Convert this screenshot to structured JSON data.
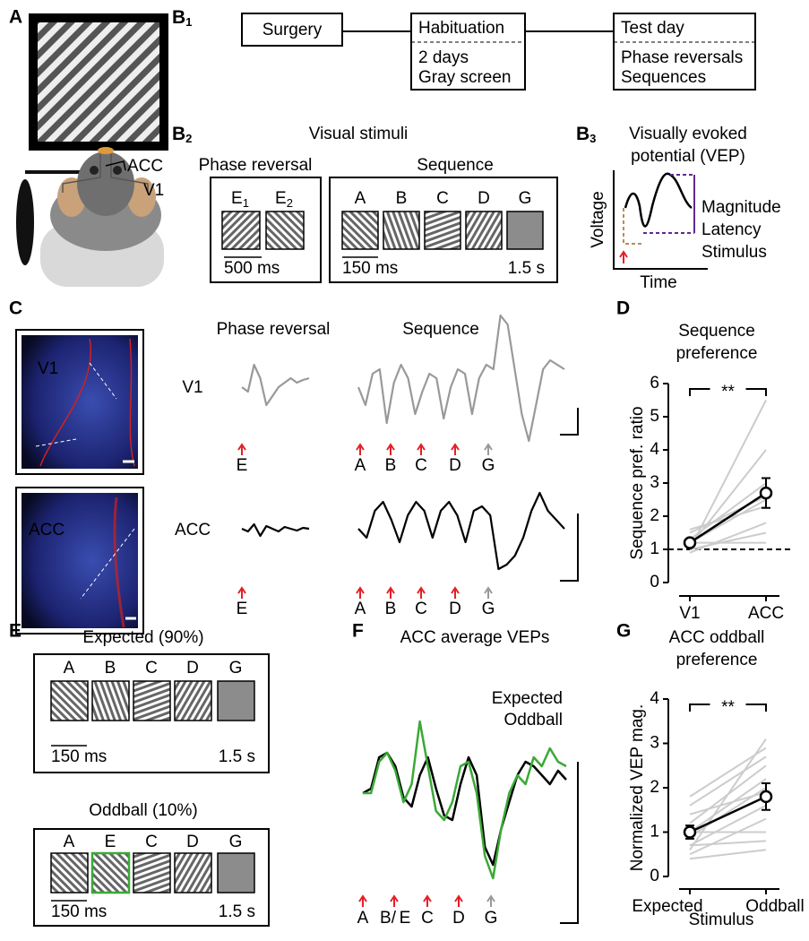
{
  "panel_a": {
    "label": "A",
    "electrodes": [
      "ACC",
      "V1"
    ]
  },
  "panel_b1": {
    "label": "B",
    "sub": "1",
    "steps": [
      {
        "title": "Surgery"
      },
      {
        "title": "Habituation",
        "details": [
          "2 days",
          "Gray screen"
        ]
      },
      {
        "title": "Test day",
        "details": [
          "Phase reversals",
          "Sequences"
        ]
      }
    ]
  },
  "panel_b2": {
    "label": "B",
    "sub": "2",
    "title": "Visual stimuli",
    "phase_reversal": {
      "title": "Phase reversal",
      "stimuli": [
        {
          "letter": "E",
          "sub": "1"
        },
        {
          "letter": "E",
          "sub": "2"
        }
      ],
      "duration": "500 ms"
    },
    "sequence": {
      "title": "Sequence",
      "stimuli": [
        "A",
        "B",
        "C",
        "D",
        "G"
      ],
      "duration": "150 ms",
      "gray_duration": "1.5 s"
    }
  },
  "panel_b3": {
    "label": "B",
    "sub": "3",
    "title": [
      "Visually evoked",
      "potential (VEP)"
    ],
    "y_label": "Voltage",
    "x_label": "Time",
    "legend": [
      {
        "text": "Magnitude",
        "color": "#5e2a91"
      },
      {
        "text": "Latency",
        "color": "#b98a5a"
      },
      {
        "text": "Stimulus",
        "color": "#e41f26"
      }
    ]
  },
  "panel_c": {
    "label": "C",
    "images": [
      "V1",
      "ACC"
    ],
    "column_titles": [
      "Phase reversal",
      "Sequence"
    ],
    "rows": [
      {
        "name": "V1",
        "color": "#999999",
        "phase_reversal": [
          0,
          -5,
          25,
          10,
          -20,
          -10,
          0,
          5,
          10,
          5,
          8,
          10
        ],
        "sequence": [
          0,
          -20,
          15,
          20,
          -40,
          5,
          25,
          10,
          -30,
          -5,
          15,
          10,
          -35,
          0,
          20,
          15,
          -30,
          10,
          25,
          20,
          80,
          70,
          20,
          -30,
          -60,
          -20,
          20,
          30,
          25,
          20
        ]
      },
      {
        "name": "ACC",
        "color": "#000000",
        "phase_reversal": [
          0,
          -3,
          5,
          -8,
          3,
          0,
          -3,
          2,
          0,
          -2,
          1,
          0
        ],
        "sequence": [
          0,
          -10,
          20,
          30,
          10,
          -15,
          15,
          30,
          20,
          -10,
          20,
          30,
          15,
          -15,
          20,
          25,
          15,
          -45,
          -40,
          -30,
          -10,
          20,
          40,
          20,
          10,
          0
        ]
      }
    ],
    "stimulus_labels": {
      "phase_reversal": [
        {
          "text": "E",
          "color": "#e41f26"
        }
      ],
      "sequence": [
        {
          "text": "A",
          "color": "#e41f26"
        },
        {
          "text": "B",
          "color": "#e41f26"
        },
        {
          "text": "C",
          "color": "#e41f26"
        },
        {
          "text": "D",
          "color": "#e41f26"
        },
        {
          "text": "G",
          "color": "#999999"
        }
      ]
    }
  },
  "panel_d": {
    "label": "D"
  },
  "panel_e": {
    "label": "E",
    "blocks": [
      {
        "title": "Expected (90%)",
        "title_color": "#000000",
        "stimuli": [
          {
            "text": "A",
            "color": "#000000"
          },
          {
            "text": "B",
            "color": "#000000"
          },
          {
            "text": "C",
            "color": "#000000"
          },
          {
            "text": "D",
            "color": "#000000"
          },
          {
            "text": "G",
            "color": "#000000"
          }
        ],
        "duration": "150 ms",
        "gray_duration": "1.5 s"
      },
      {
        "title": "Oddball (10%)",
        "title_color": "#3aa935",
        "stimuli": [
          {
            "text": "A",
            "color": "#000000"
          },
          {
            "text": "E",
            "color": "#3aa935"
          },
          {
            "text": "C",
            "color": "#000000"
          },
          {
            "text": "D",
            "color": "#000000"
          },
          {
            "text": "G",
            "color": "#000000"
          }
        ],
        "duration": "150 ms",
        "gray_duration": "1.5 s"
      }
    ]
  },
  "panel_f": {
    "label": "F",
    "title": "ACC average VEPs",
    "series": [
      {
        "name": "Expected",
        "color": "#000000",
        "values": [
          0,
          5,
          40,
          45,
          30,
          -5,
          -15,
          20,
          40,
          5,
          -25,
          -30,
          10,
          40,
          20,
          -60,
          -80,
          -40,
          -10,
          20,
          35,
          30,
          20,
          10,
          25,
          15
        ]
      },
      {
        "name": "Oddball",
        "color": "#3aa935",
        "values": [
          0,
          0,
          35,
          45,
          25,
          -10,
          10,
          80,
          30,
          -20,
          -30,
          -10,
          30,
          35,
          0,
          -70,
          -95,
          -40,
          0,
          20,
          10,
          40,
          30,
          50,
          35,
          30
        ]
      }
    ],
    "stimulus_labels": [
      {
        "text": "A",
        "color": "#e41f26"
      },
      {
        "text": "B/",
        "color": "#e41f26"
      },
      {
        "text": "E",
        "color": "#3aa935"
      },
      {
        "text": "C",
        "color": "#e41f26"
      },
      {
        "text": "D",
        "color": "#e41f26"
      },
      {
        "text": "G",
        "color": "#999999"
      }
    ]
  },
  "panel_g": {
    "label": "G"
  },
  "chart_data": [
    {
      "type": "line",
      "title": [
        "Sequence",
        "preference"
      ],
      "y_label": "Sequence pref. ratio",
      "categories": [
        "V1",
        "ACC"
      ],
      "individual_color": "#cccccc",
      "individuals": [
        [
          1.0,
          5.5
        ],
        [
          1.1,
          4.0
        ],
        [
          1.3,
          3.0
        ],
        [
          1.5,
          2.6
        ],
        [
          1.2,
          2.5
        ],
        [
          1.6,
          2.3
        ],
        [
          0.9,
          1.8
        ],
        [
          1.0,
          1.5
        ],
        [
          1.2,
          1.2
        ]
      ],
      "mean": {
        "color": "#000000",
        "values": [
          1.2,
          2.7
        ],
        "errors": [
          0.08,
          0.45
        ]
      },
      "reference_line": 1,
      "significance": "**",
      "ylim": [
        0,
        6
      ],
      "yticks": [
        0,
        1,
        2,
        3,
        4,
        5,
        6
      ]
    },
    {
      "type": "line",
      "title": [
        "ACC oddball",
        "preference"
      ],
      "y_label": "Normalized VEP mag.",
      "x_label": "Stimulus",
      "categories": [
        "Expected",
        "Oddball"
      ],
      "individual_color": "#cccccc",
      "individuals": [
        [
          0.6,
          3.1
        ],
        [
          1.8,
          2.9
        ],
        [
          1.6,
          2.7
        ],
        [
          1.2,
          2.5
        ],
        [
          0.9,
          2.0
        ],
        [
          1.4,
          1.9
        ],
        [
          0.7,
          1.6
        ],
        [
          0.5,
          1.3
        ],
        [
          1.0,
          1.0
        ],
        [
          0.7,
          0.8
        ],
        [
          0.4,
          0.6
        ],
        [
          1.0,
          2.2
        ]
      ],
      "mean": {
        "color": "#000000",
        "values": [
          1.0,
          1.8
        ],
        "errors": [
          0.15,
          0.3
        ]
      },
      "significance": "**",
      "ylim": [
        0,
        4
      ],
      "yticks": [
        0,
        1,
        2,
        3,
        4
      ]
    }
  ]
}
